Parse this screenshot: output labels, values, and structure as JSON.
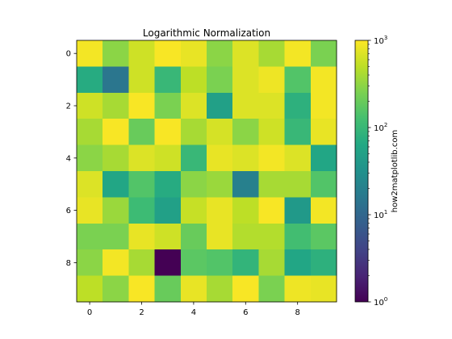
{
  "chart_data": {
    "type": "heatmap",
    "title": "Logarithmic Normalization",
    "xlabel": "",
    "ylabel": "",
    "x_ticks": [
      0,
      2,
      4,
      6,
      8
    ],
    "y_ticks": [
      0,
      2,
      4,
      6,
      8
    ],
    "colorbar": {
      "label": "how2matplotlib.com",
      "scale": "log",
      "range": [
        1,
        1000
      ],
      "colormap": "viridis",
      "ticks": [
        {
          "value": 1,
          "base": "10",
          "exp": "0"
        },
        {
          "value": 10,
          "base": "10",
          "exp": "1"
        },
        {
          "value": 100,
          "base": "10",
          "exp": "2"
        },
        {
          "value": 1000,
          "base": "10",
          "exp": "3"
        }
      ]
    },
    "values": [
      [
        900,
        300,
        600,
        950,
        800,
        300,
        700,
        400,
        900,
        250
      ],
      [
        70,
        15,
        600,
        100,
        500,
        250,
        700,
        850,
        150,
        900
      ],
      [
        600,
        400,
        950,
        250,
        700,
        50,
        700,
        700,
        80,
        900
      ],
      [
        400,
        950,
        200,
        950,
        400,
        650,
        300,
        600,
        100,
        800
      ],
      [
        300,
        400,
        700,
        600,
        100,
        800,
        700,
        900,
        700,
        60
      ],
      [
        700,
        60,
        150,
        70,
        300,
        350,
        20,
        400,
        400,
        150
      ],
      [
        800,
        350,
        110,
        50,
        550,
        800,
        500,
        950,
        40,
        900
      ],
      [
        250,
        250,
        800,
        600,
        200,
        800,
        450,
        450,
        120,
        170
      ],
      [
        300,
        900,
        400,
        1,
        170,
        150,
        90,
        400,
        60,
        80
      ],
      [
        500,
        300,
        950,
        200,
        800,
        400,
        950,
        250,
        850,
        800
      ]
    ]
  }
}
